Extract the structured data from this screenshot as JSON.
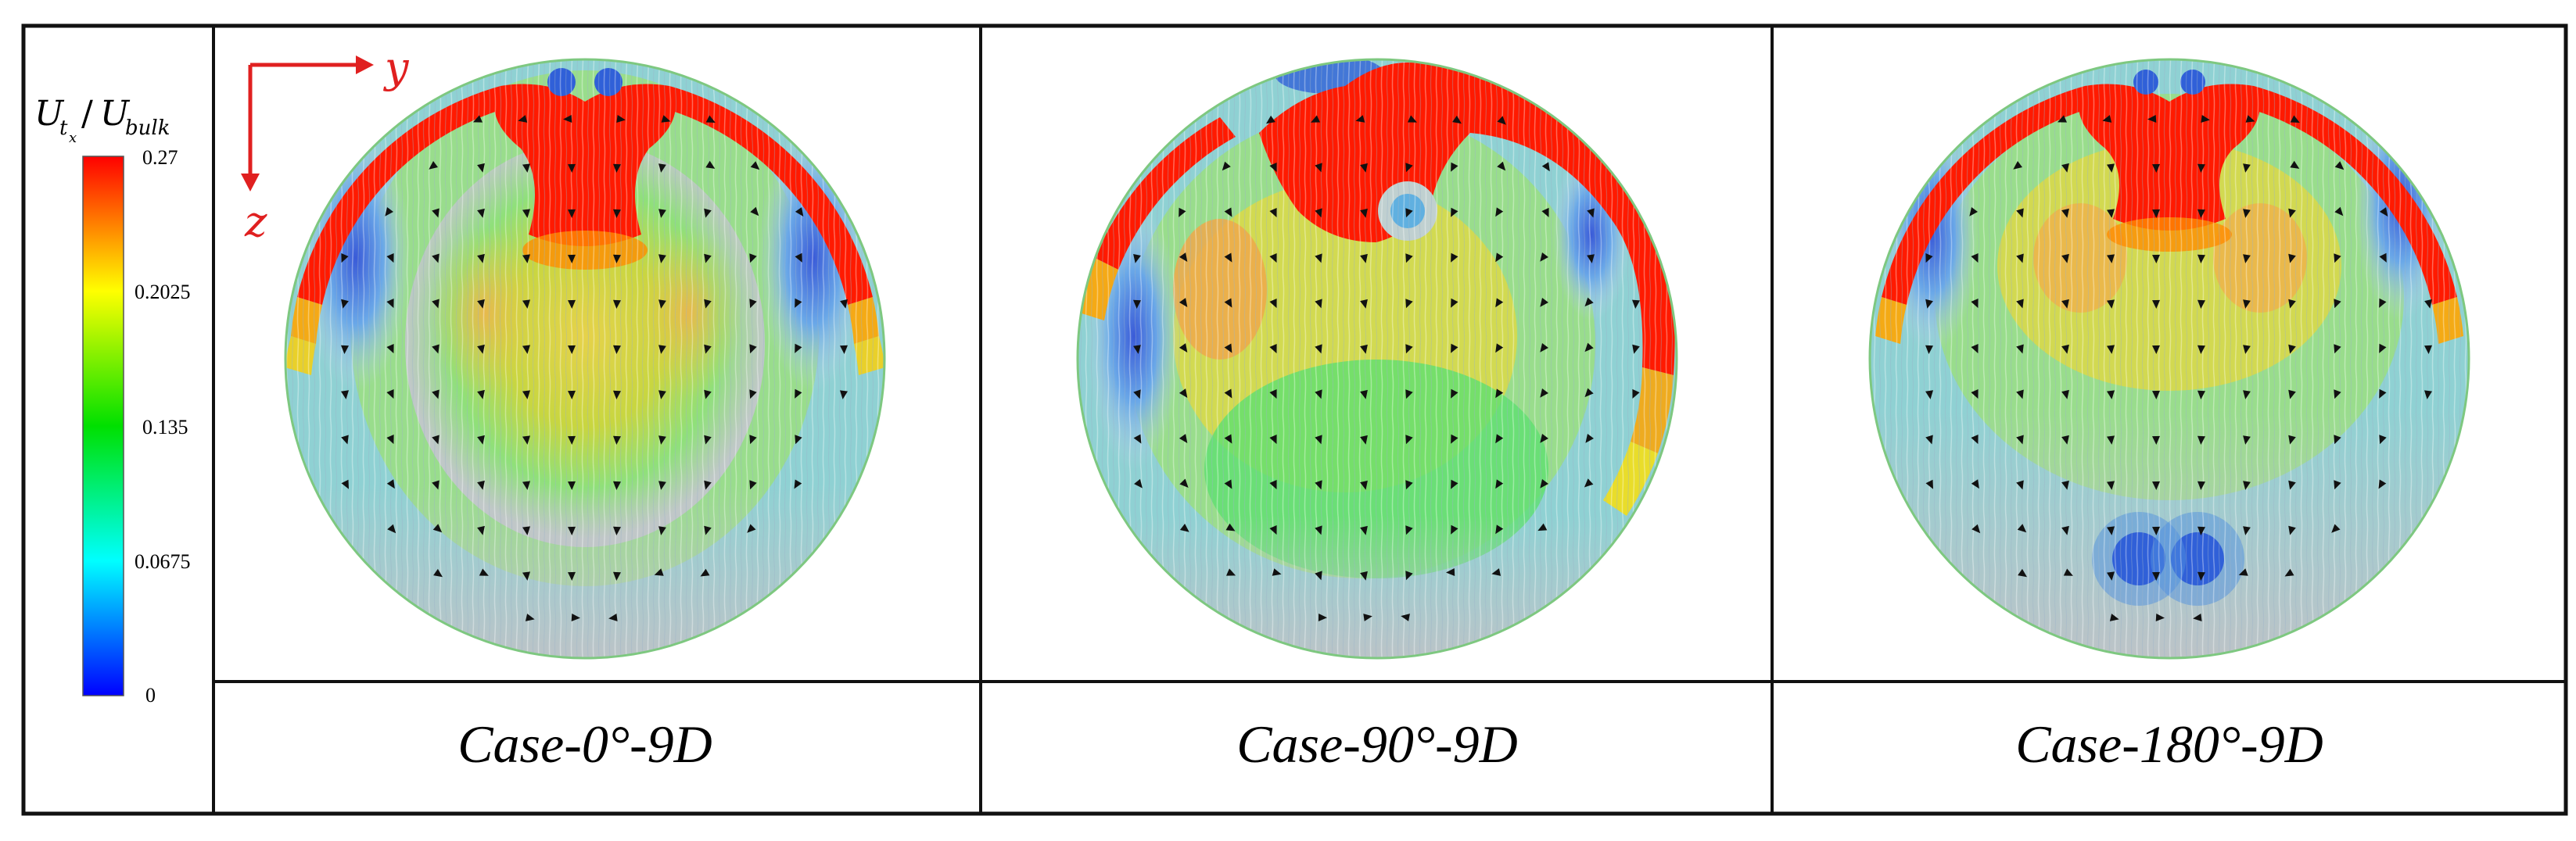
{
  "colorbar": {
    "label_main": "U",
    "label_main_sub": "t",
    "label_main_subsub": "x",
    "label_slash": "/",
    "label_denom": "U",
    "label_denom_sub": "bulk",
    "ticks": [
      "0.27",
      "0.2025",
      "0.135",
      "0.0675",
      "0"
    ],
    "colors": [
      "#ff0000",
      "#ffff00",
      "#00e000",
      "#00ffff",
      "#0000ff"
    ]
  },
  "axes": {
    "y_label": "y",
    "z_label": "z",
    "color": "#e02020"
  },
  "panels": [
    {
      "caption": "Case-0°-9D"
    },
    {
      "caption": "Case-90°-9D"
    },
    {
      "caption": "Case-180°-9D"
    }
  ]
}
